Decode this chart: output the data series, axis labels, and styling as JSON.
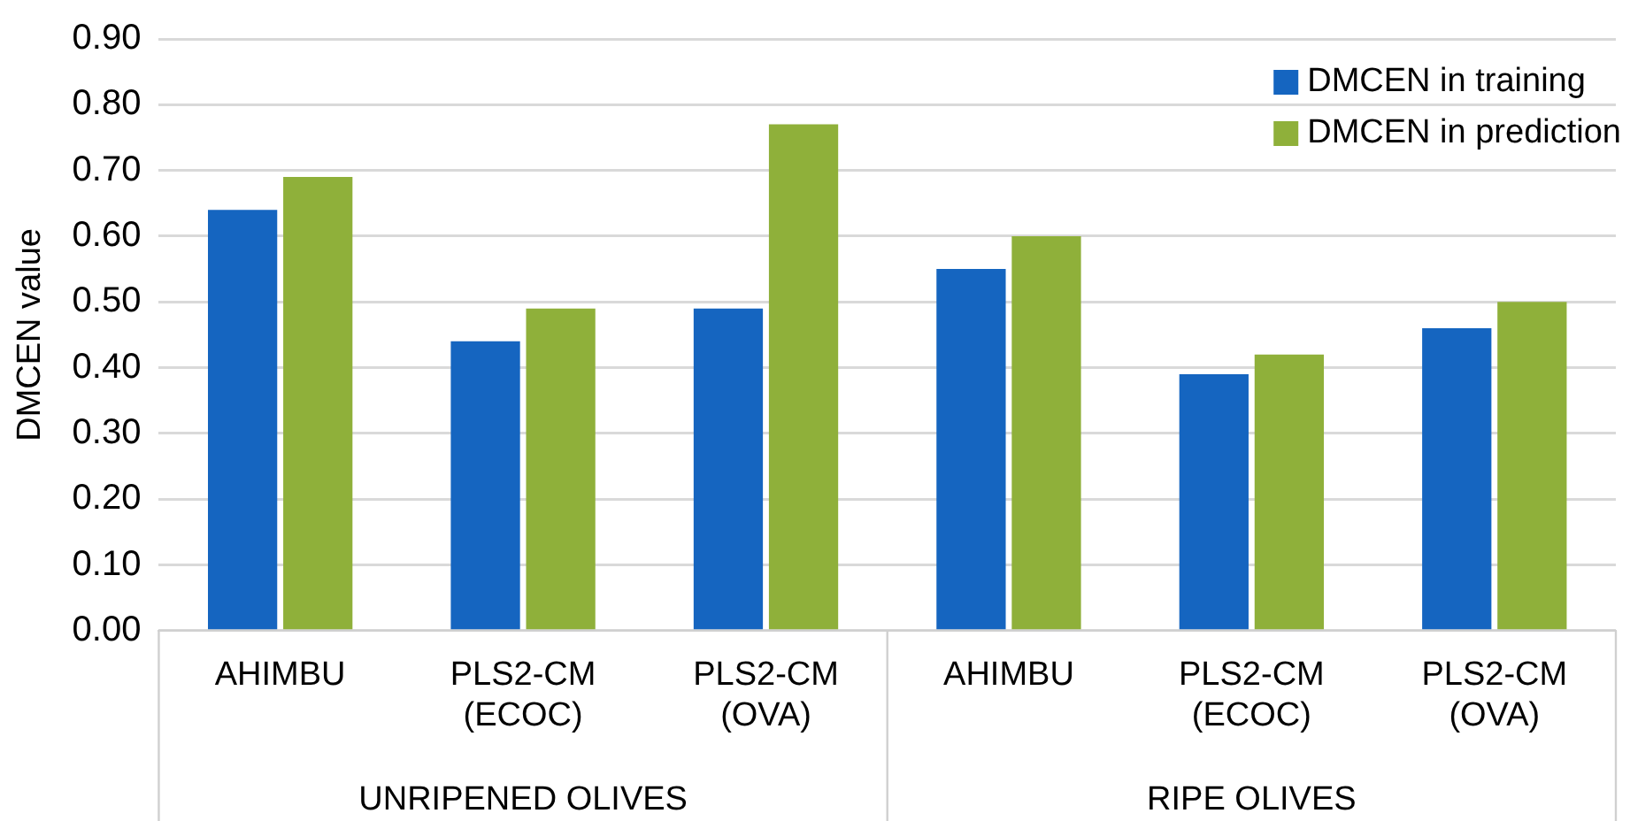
{
  "chart_data": {
    "type": "bar",
    "ylabel": "DMCEN value",
    "categories": [
      "AHIMBU",
      "PLS2-CM (ECOC)",
      "PLS2-CM (OVA)",
      "AHIMBU",
      "PLS2-CM (ECOC)",
      "PLS2-CM (OVA)"
    ],
    "series": [
      {
        "name": "DMCEN in training",
        "color": "#1565c0",
        "values": [
          0.64,
          0.44,
          0.49,
          0.55,
          0.39,
          0.46
        ]
      },
      {
        "name": "DMCEN in prediction",
        "color": "#8fb03a",
        "values": [
          0.69,
          0.49,
          0.77,
          0.6,
          0.42,
          0.5
        ]
      }
    ],
    "ylim": [
      0,
      0.9
    ],
    "yticks": [
      {
        "value": 0,
        "label": "0.00"
      },
      {
        "value": 0.1,
        "label": "0.10"
      },
      {
        "value": 0.2,
        "label": "0.20"
      },
      {
        "value": 0.3,
        "label": "0.30"
      },
      {
        "value": 0.4,
        "label": "0.40"
      },
      {
        "value": 0.5,
        "label": "0.50"
      },
      {
        "value": 0.6,
        "label": "0.60"
      },
      {
        "value": 0.7,
        "label": "0.70"
      },
      {
        "value": 0.8,
        "label": "0.80"
      },
      {
        "value": 0.9,
        "label": "0.90"
      }
    ],
    "grid": "y",
    "legend": "top right",
    "annotations": [
      "UNRIPENED OLIVES",
      "RIPE OLIVES"
    ]
  }
}
